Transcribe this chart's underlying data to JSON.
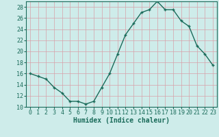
{
  "x": [
    0,
    1,
    2,
    3,
    4,
    5,
    6,
    7,
    8,
    9,
    10,
    11,
    12,
    13,
    14,
    15,
    16,
    17,
    18,
    19,
    20,
    21,
    22,
    23
  ],
  "y": [
    16,
    15.5,
    15,
    13.5,
    12.5,
    11,
    11,
    10.5,
    11,
    13.5,
    16,
    19.5,
    23,
    25,
    27,
    27.5,
    29,
    27.5,
    27.5,
    25.5,
    24.5,
    21,
    19.5,
    17.5
  ],
  "line_color": "#1a6b5a",
  "marker": "+",
  "marker_size": 3,
  "bg_color": "#ceecea",
  "grid_color": "#b8deda",
  "xlabel": "Humidex (Indice chaleur)",
  "xlabel_fontsize": 7,
  "xlim": [
    -0.5,
    23.5
  ],
  "ylim": [
    10,
    29
  ],
  "yticks": [
    10,
    12,
    14,
    16,
    18,
    20,
    22,
    24,
    26,
    28
  ],
  "xticks": [
    0,
    1,
    2,
    3,
    4,
    5,
    6,
    7,
    8,
    9,
    10,
    11,
    12,
    13,
    14,
    15,
    16,
    17,
    18,
    19,
    20,
    21,
    22,
    23
  ],
  "tick_labelsize": 6,
  "linewidth": 1.0
}
